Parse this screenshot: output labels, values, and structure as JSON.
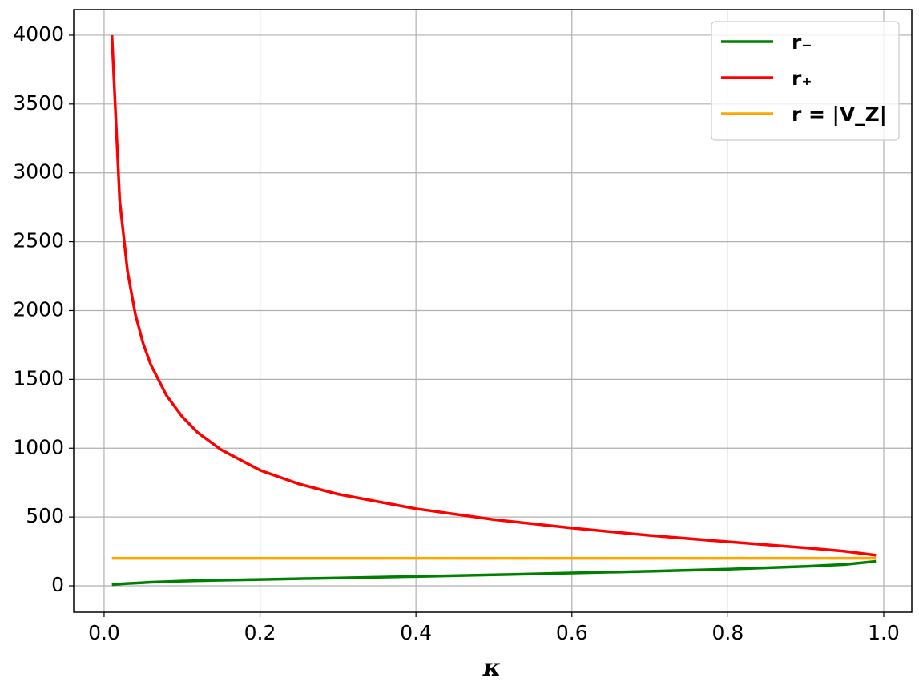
{
  "chart_data": {
    "type": "line",
    "x_label": "κ",
    "x": [
      0.01,
      0.02,
      0.03,
      0.04,
      0.05,
      0.06,
      0.08,
      0.1,
      0.12,
      0.15,
      0.2,
      0.25,
      0.3,
      0.4,
      0.5,
      0.6,
      0.7,
      0.8,
      0.9,
      0.95,
      0.99
    ],
    "series": [
      {
        "name": "r₋",
        "color": "#008000",
        "values": [
          8,
          13,
          17,
          20,
          23,
          26,
          30,
          34,
          37,
          41,
          46,
          52,
          57,
          68,
          80,
          93,
          106,
          121,
          141,
          155,
          178
        ]
      },
      {
        "name": "r₊",
        "color": "#ff0000",
        "values": [
          4000,
          2800,
          2286,
          1975,
          1762,
          1605,
          1383,
          1230,
          1114,
          989,
          840,
          740,
          666,
          560,
          481,
          420,
          366,
          320,
          276,
          251,
          222
        ]
      },
      {
        "name": "r = |V_Z|",
        "color": "#ffa500",
        "values": [
          200,
          200,
          200,
          200,
          200,
          200,
          200,
          200,
          200,
          200,
          200,
          200,
          200,
          200,
          200,
          200,
          200,
          200,
          200,
          200,
          200
        ]
      }
    ],
    "xlim": [
      -0.039,
      1.036
    ],
    "ylim": [
      -192,
      4186
    ],
    "xticks": [
      {
        "value": 0,
        "label": "0.0"
      },
      0.2,
      0.4,
      0.6,
      0.8,
      {
        "value": 1,
        "label": "1.0"
      }
    ],
    "yticks": [
      0,
      500,
      1000,
      1500,
      2000,
      2500,
      3000,
      3500,
      4000
    ],
    "grid": true,
    "legend": "upper right"
  }
}
